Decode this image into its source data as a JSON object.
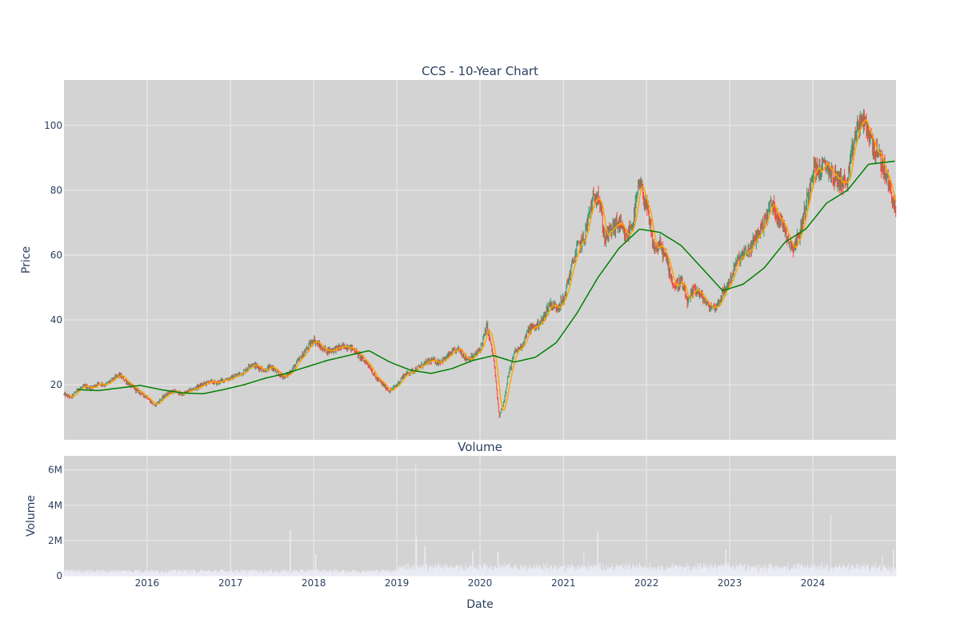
{
  "chart_data": [
    {
      "type": "candlestick",
      "title": "CCS - 10-Year Chart",
      "ylabel": "Price",
      "ylim": [
        3,
        114
      ],
      "xlim": [
        "2015-01-01",
        "2024-12-31"
      ],
      "yticks": [
        20,
        40,
        60,
        80,
        100
      ],
      "grid": true,
      "colors": {
        "background": "#d3d3d3",
        "gridline": "#ebebeb",
        "up": "#3d9970",
        "down": "#ff4136",
        "ma_short": "#ffa500",
        "ma_long": "#008000"
      },
      "close_path": [
        [
          "2015-01-02",
          17
        ],
        [
          "2015-02-01",
          16
        ],
        [
          "2015-03-01",
          18.5
        ],
        [
          "2015-04-01",
          19.5
        ],
        [
          "2015-05-01",
          19
        ],
        [
          "2015-06-01",
          20.5
        ],
        [
          "2015-07-01",
          20
        ],
        [
          "2015-08-01",
          21.5
        ],
        [
          "2015-09-01",
          23
        ],
        [
          "2015-10-01",
          21
        ],
        [
          "2015-11-01",
          19
        ],
        [
          "2015-12-01",
          17.5
        ],
        [
          "2016-01-01",
          16
        ],
        [
          "2016-02-01",
          13.5
        ],
        [
          "2016-03-01",
          15.5
        ],
        [
          "2016-04-01",
          17.5
        ],
        [
          "2016-05-01",
          18
        ],
        [
          "2016-06-01",
          17
        ],
        [
          "2016-07-01",
          18
        ],
        [
          "2016-08-01",
          19
        ],
        [
          "2016-09-01",
          20
        ],
        [
          "2016-10-01",
          21
        ],
        [
          "2016-11-01",
          20.5
        ],
        [
          "2016-12-01",
          21.5
        ],
        [
          "2017-01-01",
          22
        ],
        [
          "2017-02-01",
          23
        ],
        [
          "2017-03-01",
          24
        ],
        [
          "2017-04-01",
          26.5
        ],
        [
          "2017-05-01",
          25.5
        ],
        [
          "2017-06-01",
          24.5
        ],
        [
          "2017-07-01",
          25.5
        ],
        [
          "2017-08-01",
          23
        ],
        [
          "2017-09-01",
          22.5
        ],
        [
          "2017-10-01",
          25
        ],
        [
          "2017-11-01",
          28
        ],
        [
          "2017-12-01",
          31
        ],
        [
          "2018-01-01",
          34
        ],
        [
          "2018-02-01",
          31.5
        ],
        [
          "2018-03-01",
          30.5
        ],
        [
          "2018-04-01",
          31
        ],
        [
          "2018-05-01",
          31.5
        ],
        [
          "2018-06-01",
          32
        ],
        [
          "2018-07-01",
          30.5
        ],
        [
          "2018-08-01",
          28
        ],
        [
          "2018-09-01",
          26
        ],
        [
          "2018-10-01",
          22
        ],
        [
          "2018-11-01",
          20
        ],
        [
          "2018-12-01",
          18
        ],
        [
          "2019-01-01",
          20
        ],
        [
          "2019-02-01",
          23
        ],
        [
          "2019-03-01",
          24
        ],
        [
          "2019-04-01",
          25
        ],
        [
          "2019-05-01",
          26.5
        ],
        [
          "2019-06-01",
          27.5
        ],
        [
          "2019-07-01",
          27
        ],
        [
          "2019-08-01",
          28
        ],
        [
          "2019-09-01",
          30
        ],
        [
          "2019-10-01",
          31
        ],
        [
          "2019-11-01",
          28
        ],
        [
          "2019-12-01",
          28.5
        ],
        [
          "2020-01-01",
          31
        ],
        [
          "2020-02-01",
          38
        ],
        [
          "2020-03-01",
          28
        ],
        [
          "2020-03-25",
          10
        ],
        [
          "2020-04-15",
          15
        ],
        [
          "2020-05-01",
          22
        ],
        [
          "2020-06-01",
          30
        ],
        [
          "2020-07-01",
          32
        ],
        [
          "2020-08-01",
          37
        ],
        [
          "2020-09-01",
          38
        ],
        [
          "2020-10-01",
          40
        ],
        [
          "2020-11-01",
          45
        ],
        [
          "2020-12-01",
          44
        ],
        [
          "2021-01-01",
          46
        ],
        [
          "2021-02-01",
          55
        ],
        [
          "2021-03-01",
          62
        ],
        [
          "2021-04-01",
          65
        ],
        [
          "2021-05-01",
          75
        ],
        [
          "2021-06-01",
          80
        ],
        [
          "2021-07-01",
          65
        ],
        [
          "2021-08-01",
          68
        ],
        [
          "2021-09-01",
          70
        ],
        [
          "2021-10-01",
          65
        ],
        [
          "2021-11-01",
          70
        ],
        [
          "2021-12-01",
          82
        ],
        [
          "2022-01-01",
          75
        ],
        [
          "2022-02-01",
          62
        ],
        [
          "2022-03-01",
          63
        ],
        [
          "2022-04-01",
          58
        ],
        [
          "2022-05-01",
          50
        ],
        [
          "2022-06-01",
          52
        ],
        [
          "2022-07-01",
          45
        ],
        [
          "2022-08-01",
          50
        ],
        [
          "2022-09-01",
          47
        ],
        [
          "2022-10-01",
          44
        ],
        [
          "2022-11-01",
          44
        ],
        [
          "2022-12-01",
          48
        ],
        [
          "2023-01-01",
          52
        ],
        [
          "2023-02-01",
          58
        ],
        [
          "2023-03-01",
          60
        ],
        [
          "2023-04-01",
          62
        ],
        [
          "2023-05-01",
          66
        ],
        [
          "2023-06-01",
          70
        ],
        [
          "2023-07-01",
          76
        ],
        [
          "2023-08-01",
          72
        ],
        [
          "2023-09-01",
          68
        ],
        [
          "2023-10-01",
          62
        ],
        [
          "2023-11-01",
          66
        ],
        [
          "2023-12-01",
          75
        ],
        [
          "2024-01-01",
          87
        ],
        [
          "2024-02-01",
          86
        ],
        [
          "2024-03-01",
          88
        ],
        [
          "2024-04-01",
          84
        ],
        [
          "2024-05-01",
          83
        ],
        [
          "2024-06-01",
          82
        ],
        [
          "2024-07-01",
          96
        ],
        [
          "2024-08-01",
          102
        ],
        [
          "2024-09-01",
          98
        ],
        [
          "2024-10-01",
          92
        ],
        [
          "2024-11-01",
          88
        ],
        [
          "2024-12-15",
          78
        ],
        [
          "2024-12-31",
          72
        ]
      ],
      "ma_long_path": [
        [
          "2015-03-01",
          18.5
        ],
        [
          "2015-06-01",
          18.2
        ],
        [
          "2015-09-01",
          19
        ],
        [
          "2015-12-01",
          19.8
        ],
        [
          "2016-03-01",
          18.5
        ],
        [
          "2016-06-01",
          17.5
        ],
        [
          "2016-09-01",
          17.2
        ],
        [
          "2016-12-01",
          18.5
        ],
        [
          "2017-03-01",
          20
        ],
        [
          "2017-06-01",
          22
        ],
        [
          "2017-09-01",
          23.5
        ],
        [
          "2017-12-01",
          25.5
        ],
        [
          "2018-03-01",
          27.5
        ],
        [
          "2018-06-01",
          29
        ],
        [
          "2018-09-01",
          30.5
        ],
        [
          "2018-12-01",
          27
        ],
        [
          "2019-03-01",
          24.5
        ],
        [
          "2019-06-01",
          23.5
        ],
        [
          "2019-09-01",
          25
        ],
        [
          "2019-12-01",
          27.5
        ],
        [
          "2020-03-01",
          29
        ],
        [
          "2020-06-01",
          27
        ],
        [
          "2020-09-01",
          28.5
        ],
        [
          "2020-12-01",
          33
        ],
        [
          "2021-03-01",
          42
        ],
        [
          "2021-06-01",
          53
        ],
        [
          "2021-09-01",
          62
        ],
        [
          "2021-12-01",
          68
        ],
        [
          "2022-03-01",
          67
        ],
        [
          "2022-06-01",
          63
        ],
        [
          "2022-09-01",
          56
        ],
        [
          "2022-12-01",
          49
        ],
        [
          "2023-03-01",
          51
        ],
        [
          "2023-06-01",
          56
        ],
        [
          "2023-09-01",
          64
        ],
        [
          "2023-12-01",
          68
        ],
        [
          "2024-03-01",
          76
        ],
        [
          "2024-06-01",
          80
        ],
        [
          "2024-09-01",
          88
        ],
        [
          "2024-12-31",
          89
        ]
      ]
    },
    {
      "type": "bar",
      "title": "Volume",
      "xlabel": "Date",
      "ylabel": "Volume",
      "ylim": [
        0,
        6800000
      ],
      "yticks": [
        0,
        2000000,
        4000000,
        6000000
      ],
      "ytick_labels": [
        "0",
        "2M",
        "4M",
        "6M"
      ],
      "xticks": [
        "2016-01-01",
        "2017-01-01",
        "2018-01-01",
        "2019-01-01",
        "2020-01-01",
        "2021-01-01",
        "2022-01-01",
        "2023-01-01",
        "2024-01-01"
      ],
      "xtick_labels": [
        "2016",
        "2017",
        "2018",
        "2019",
        "2020",
        "2021",
        "2022",
        "2023",
        "2024"
      ],
      "colors": {
        "bar": "#ebebf5"
      },
      "spikes": [
        [
          "2017-09-20",
          2600000
        ],
        [
          "2018-01-10",
          1200000
        ],
        [
          "2019-03-25",
          6400000
        ],
        [
          "2019-03-28",
          2200000
        ],
        [
          "2019-05-05",
          1700000
        ],
        [
          "2019-12-01",
          1400000
        ],
        [
          "2020-03-20",
          1400000
        ],
        [
          "2021-06-01",
          2500000
        ],
        [
          "2021-04-01",
          1300000
        ],
        [
          "2022-12-15",
          1500000
        ],
        [
          "2024-03-20",
          3500000
        ],
        [
          "2024-11-01",
          1200000
        ],
        [
          "2024-12-20",
          1500000
        ]
      ]
    }
  ]
}
